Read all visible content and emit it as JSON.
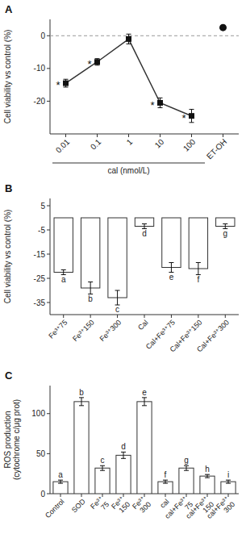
{
  "chart_data": [
    {
      "type": "line",
      "title": "A",
      "categories": [
        "0.01",
        "0.1",
        "1",
        "10",
        "100",
        "ET-OH"
      ],
      "series": [
        {
          "values": [
            -14.5,
            -8.0,
            -1.0,
            -20.5,
            -24.5,
            null
          ],
          "errors": [
            1.2,
            1.0,
            1.5,
            1.5,
            2.0,
            null
          ],
          "marker": "square",
          "line_style": "solid"
        },
        {
          "values": [
            null,
            null,
            null,
            null,
            null,
            2.5
          ],
          "errors": [
            null,
            null,
            null,
            null,
            null,
            0.5
          ],
          "marker": "circle",
          "line_style": "none"
        }
      ],
      "annotations": [
        {
          "text": "*",
          "x": "0.01"
        },
        {
          "text": "*",
          "x": "0.1"
        },
        {
          "text": "*",
          "x": "10"
        },
        {
          "text": "*",
          "x": "100"
        }
      ],
      "reference_lines": [
        0
      ],
      "xlabel": "cal (nmol/L)",
      "ylabel": "Cell viability vs control (%)",
      "ylim": [
        -30,
        5
      ],
      "yticks": [
        0,
        -10,
        -20
      ],
      "grid": false
    },
    {
      "type": "bar",
      "title": "B",
      "categories": [
        "Fe³⁺75",
        "Fe³⁺150",
        "Fe³⁺300",
        "Cal",
        "Cal+Fe³⁺75",
        "Cal+Fe³⁺150",
        "Cal+Fe³⁺300"
      ],
      "values": [
        -22.5,
        -29.0,
        -33.0,
        -3.5,
        -20.5,
        -21.0,
        -3.5
      ],
      "errors": [
        1.0,
        2.5,
        3.0,
        1.0,
        2.0,
        2.5,
        1.0
      ],
      "letters": [
        "a",
        "b",
        "c",
        "d",
        "e",
        "f",
        "g"
      ],
      "color": "white",
      "ylabel": "Cell viability vs control (%)",
      "ylim": [
        -40,
        8
      ],
      "yticks": [
        5,
        -5,
        -15,
        -25,
        -35
      ],
      "grid": false
    },
    {
      "type": "bar",
      "title": "C",
      "categories": [
        "Control",
        "SOD",
        "Fe³⁺\n75",
        "Fe³⁺\n150",
        "Fe³⁺\n300",
        "cal",
        "cal+Fe³⁺\n75",
        "cal+Fe³⁺\n150",
        "cal+Fe³⁺\n300"
      ],
      "values": [
        15,
        115,
        32,
        48,
        115,
        15,
        32,
        22,
        15
      ],
      "errors": [
        2,
        5,
        3,
        4,
        5,
        2,
        3,
        2,
        2
      ],
      "letters": [
        "a",
        "b",
        "c",
        "d",
        "e",
        "f",
        "g",
        "h",
        "i"
      ],
      "color": "white",
      "ylabel": "ROS production\n(cytochrome c/μg prot)",
      "ylim": [
        0,
        135
      ],
      "yticks": [
        0,
        50,
        100
      ],
      "grid": false
    }
  ]
}
